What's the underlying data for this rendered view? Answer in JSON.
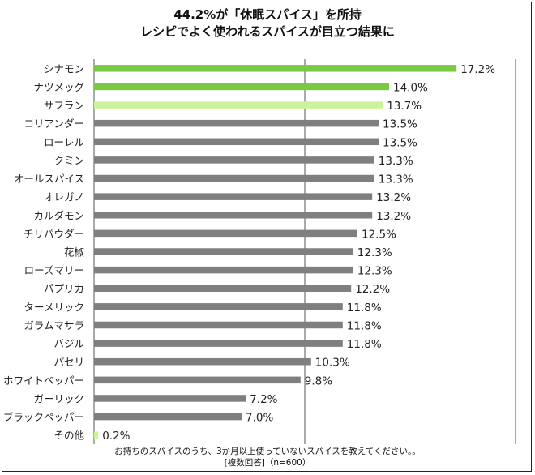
{
  "title_lines": [
    "44.2%が「休眠スパイス」を所持",
    "レシピでよく使われるスパイスが目立つ結果に"
  ],
  "footnote_lines": [
    "お持ちのスパイスのうち、3か月以上使っていないスパイスを教えてください。。",
    "[複数回答]（n=600）"
  ],
  "colors": {
    "highlight": "#7ac943",
    "highlight_light": "#ccf29a",
    "bar": "#7f7f7f",
    "grid": "#555555"
  },
  "chart_data": {
    "type": "bar",
    "orientation": "horizontal",
    "categories": [
      "シナモン",
      "ナツメッグ",
      "サフラン",
      "コリアンダー",
      "ローレル",
      "クミン",
      "オールスパイス",
      "オレガノ",
      "カルダモン",
      "チリパウダー",
      "花椒",
      "ローズマリー",
      "パプリカ",
      "ターメリック",
      "ガラムマサラ",
      "バジル",
      "パセリ",
      "ホワイトペッパー",
      "ガーリック",
      "ブラックペッパー",
      "その他"
    ],
    "values": [
      17.2,
      14.0,
      13.7,
      13.5,
      13.5,
      13.3,
      13.3,
      13.2,
      13.2,
      12.5,
      12.3,
      12.3,
      12.2,
      11.8,
      11.8,
      11.8,
      10.3,
      9.8,
      7.2,
      7.0,
      0.2
    ],
    "value_labels": [
      "17.2%",
      "14.0%",
      "13.7%",
      "13.5%",
      "13.5%",
      "13.3%",
      "13.3%",
      "13.2%",
      "13.2%",
      "12.5%",
      "12.3%",
      "12.3%",
      "12.2%",
      "11.8%",
      "11.8%",
      "11.8%",
      "10.3%",
      "9.8%",
      "7.2%",
      "7.0%",
      "0.2%"
    ],
    "bar_color_keys": [
      "highlight",
      "highlight",
      "highlight_light",
      "bar",
      "bar",
      "bar",
      "bar",
      "bar",
      "bar",
      "bar",
      "bar",
      "bar",
      "bar",
      "bar",
      "bar",
      "bar",
      "bar",
      "bar",
      "bar",
      "bar",
      "highlight_light"
    ],
    "xlim": [
      0,
      20
    ],
    "grid": true,
    "gridline_values": [
      0,
      10,
      20
    ]
  }
}
